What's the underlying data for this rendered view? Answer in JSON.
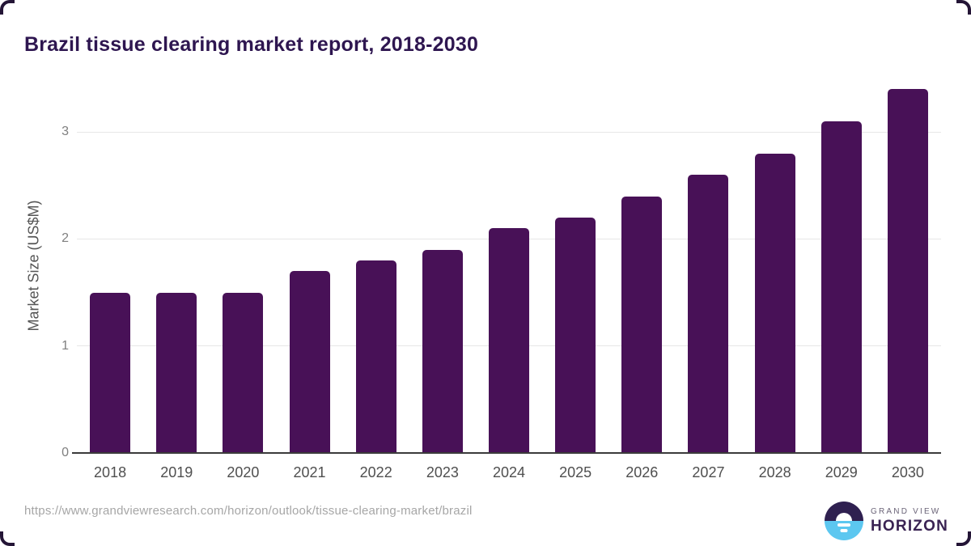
{
  "title": "Brazil tissue clearing market report, 2018-2030",
  "chart_data": {
    "type": "bar",
    "categories": [
      "2018",
      "2019",
      "2020",
      "2021",
      "2022",
      "2023",
      "2024",
      "2025",
      "2026",
      "2027",
      "2028",
      "2029",
      "2030"
    ],
    "values": [
      1.5,
      1.5,
      1.5,
      1.7,
      1.8,
      1.9,
      2.1,
      2.2,
      2.4,
      2.6,
      2.8,
      3.1,
      3.4
    ],
    "title": "Brazil tissue clearing market report, 2018-2030",
    "xlabel": "",
    "ylabel": "Market Size (US$M)",
    "yticks": [
      0,
      1,
      2,
      3
    ],
    "ylim": [
      0,
      3.5
    ],
    "grid": true,
    "legend_position": "none",
    "bar_color": "#481157"
  },
  "footer": {
    "source_url": "https://www.grandviewresearch.com/horizon/outlook/tissue-clearing-market/brazil",
    "logo": {
      "line1": "GRAND VIEW",
      "line2": "HORIZON",
      "circle_top_color": "#2f2050",
      "circle_bottom_color": "#5cc7f0"
    }
  },
  "colors": {
    "title": "#2e1650",
    "axis_label": "#555555",
    "tick_label": "#7f7f7f",
    "x_tick_label": "#4f4f4f",
    "gridline": "#e7e7e7",
    "axis_line": "#3b3b3b",
    "url": "#a6a6a6",
    "corner": "#241536",
    "logo_gray": "#6b6478",
    "logo_purple": "#3a2353"
  }
}
